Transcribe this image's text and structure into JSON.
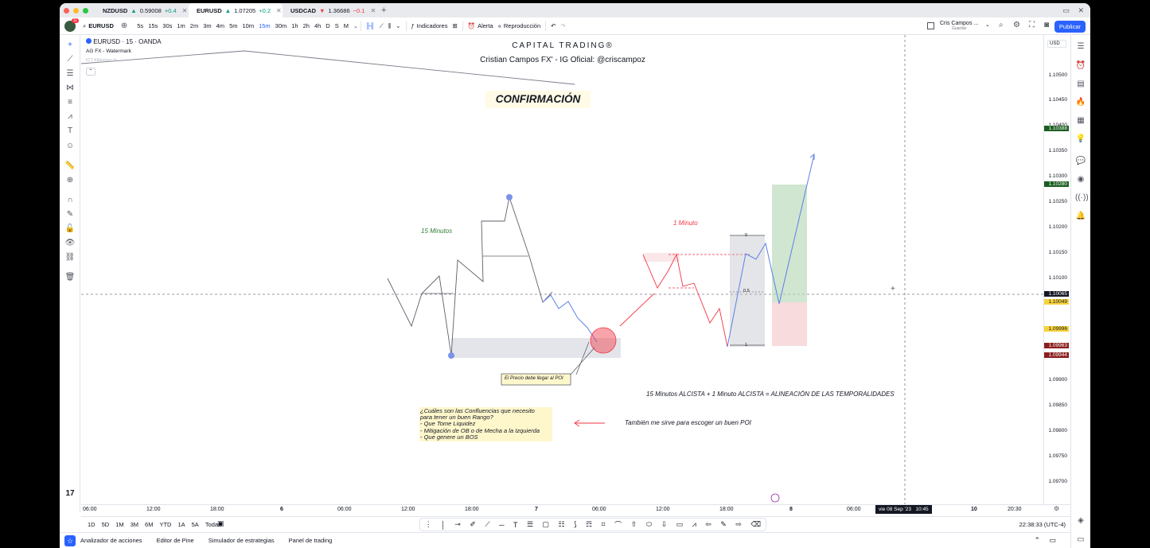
{
  "tabs": [
    {
      "symbol": "NZDUSD",
      "arrow": "▲",
      "price": "0.59008",
      "change": "+0.4",
      "dir": "up"
    },
    {
      "symbol": "EURUSD",
      "arrow": "▲",
      "price": "1.07205",
      "change": "+0.2",
      "dir": "up"
    },
    {
      "symbol": "USDCAD",
      "arrow": "▼",
      "price": "1.36686",
      "change": "−0.1",
      "dir": "down"
    }
  ],
  "toolbar": {
    "symbol": "EURUSD",
    "intervals": [
      "5s",
      "15s",
      "30s",
      "1m",
      "2m",
      "3m",
      "4m",
      "5m",
      "10m",
      "15m",
      "30m",
      "1h",
      "2h",
      "4h",
      "D",
      "S",
      "M"
    ],
    "selected_interval": "15m",
    "indicators": "Indicadores",
    "alert": "Alerta",
    "replay": "Reproducción",
    "user": "Cris Campos ...",
    "user_sub": "Guardar",
    "publish": "Publicar"
  },
  "legend": {
    "title": "EURUSD · 15 · OANDA",
    "watermark": "AG FX - Watermark",
    "ict": "ICT Killzones"
  },
  "chart_text": {
    "brand": "CAPITAL TRADING®",
    "author": "Cristian Campos FX' - IG Oficial: @criscampoz",
    "heading": "CONFIRMACIÓN",
    "tf15": "15 Minutos",
    "tf1": "1 Minuto",
    "poi_note": "El Precio debe llegar al POI",
    "alignment": "15 Minutos ALCISTA + 1 Minuto ALCISTA = ALINEACIÓN DE LAS TEMPORALIDADES",
    "question": [
      "¿Cuáles son las Confluencias que necesito",
      "para tener un buen Rango?",
      "- Que Tome Liquidez",
      "- Mitigación de OB o de Mecha a la Izquierda",
      "- Que genere un BOS"
    ],
    "poi_choice": "También me sirve para escoger un buen POI",
    "fib0": "0",
    "fib05": "0.5",
    "fib1": "1"
  },
  "price_scale": {
    "currency": "USD",
    "ticks": [
      "1.10500",
      "1.10450",
      "1.10400",
      "1.10350",
      "1.10300",
      "1.10250",
      "1.10200",
      "1.10150",
      "1.10100",
      "1.09900",
      "1.09850",
      "1.09800",
      "1.09750",
      "1.09700"
    ],
    "badges": [
      {
        "value": "1.10388",
        "color": "#1b5e20"
      },
      {
        "value": "1.10280",
        "color": "#1b5e20"
      },
      {
        "value": "1.10065",
        "color": "#131722"
      },
      {
        "value": "1.10049",
        "color": "#f7d33b"
      },
      {
        "value": "1.09996",
        "color": "#f7d33b"
      },
      {
        "value": "1.09963",
        "color": "#8b1e1e"
      },
      {
        "value": "1.09944",
        "color": "#8b1e1e"
      }
    ]
  },
  "time_axis": {
    "ticks": [
      "06:00",
      "12:00",
      "18:00",
      "6",
      "06:00",
      "12:00",
      "18:00",
      "7",
      "06:00",
      "12:00",
      "18:00",
      "8",
      "06:00",
      "10",
      "20:30"
    ],
    "crosshair": "vie 08 Sep '23   10:45"
  },
  "bottom": {
    "ranges": [
      "1D",
      "5D",
      "1M",
      "3M",
      "6M",
      "YTD",
      "1A",
      "5A",
      "Todas"
    ],
    "clock": "22:38:33 (UTC-4)",
    "panels": [
      "Analizador de acciones",
      "Editor de Pine",
      "Simulador de estrategias",
      "Panel de trading"
    ]
  }
}
